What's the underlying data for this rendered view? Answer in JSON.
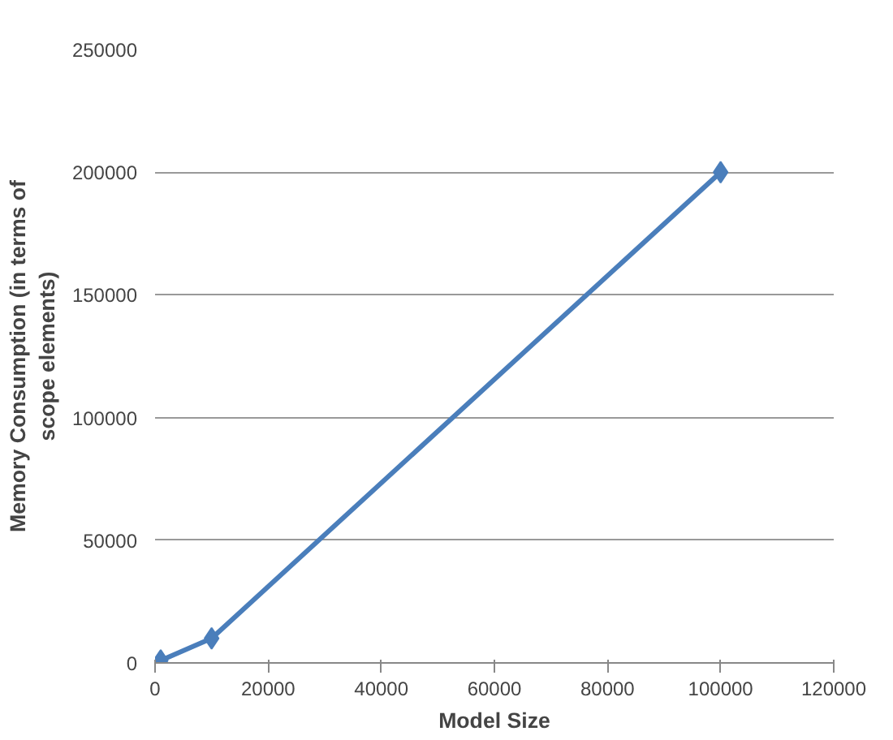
{
  "chart_data": {
    "type": "line",
    "xlabel": "Model Size",
    "ylabel": "Memory Consumption (in terms of\nscope elements)",
    "x": [
      1000,
      10000,
      100000
    ],
    "series": [
      {
        "color": "#4a7ebb",
        "values": [
          1000,
          10000,
          200000
        ]
      }
    ],
    "xlim": [
      0,
      120000
    ],
    "ylim": [
      0,
      250000
    ],
    "xticks": [
      0,
      20000,
      40000,
      60000,
      80000,
      100000,
      120000
    ],
    "yticks": [
      0,
      50000,
      100000,
      150000,
      200000,
      250000
    ],
    "grid": "y",
    "marker": "diamond",
    "line_style": "solid"
  }
}
